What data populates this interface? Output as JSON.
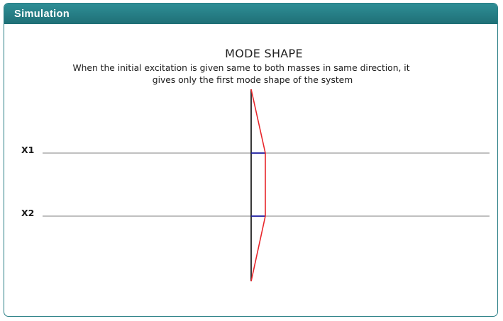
{
  "panel": {
    "title": "Simulation",
    "accent_color": "#1f6f76"
  },
  "diagram": {
    "heading": "MODE SHAPE",
    "description_line1": "When the initial excitation is given same to both masses in same direction, it",
    "description_line2": "gives only the first mode shape of the system",
    "masses": [
      {
        "label": "X1"
      },
      {
        "label": "X2"
      }
    ],
    "colors": {
      "mode_shape": "#e8262b",
      "mass_marker": "#1a1aa0",
      "axis": "#222222",
      "level_line": "#9a9a9a"
    }
  }
}
